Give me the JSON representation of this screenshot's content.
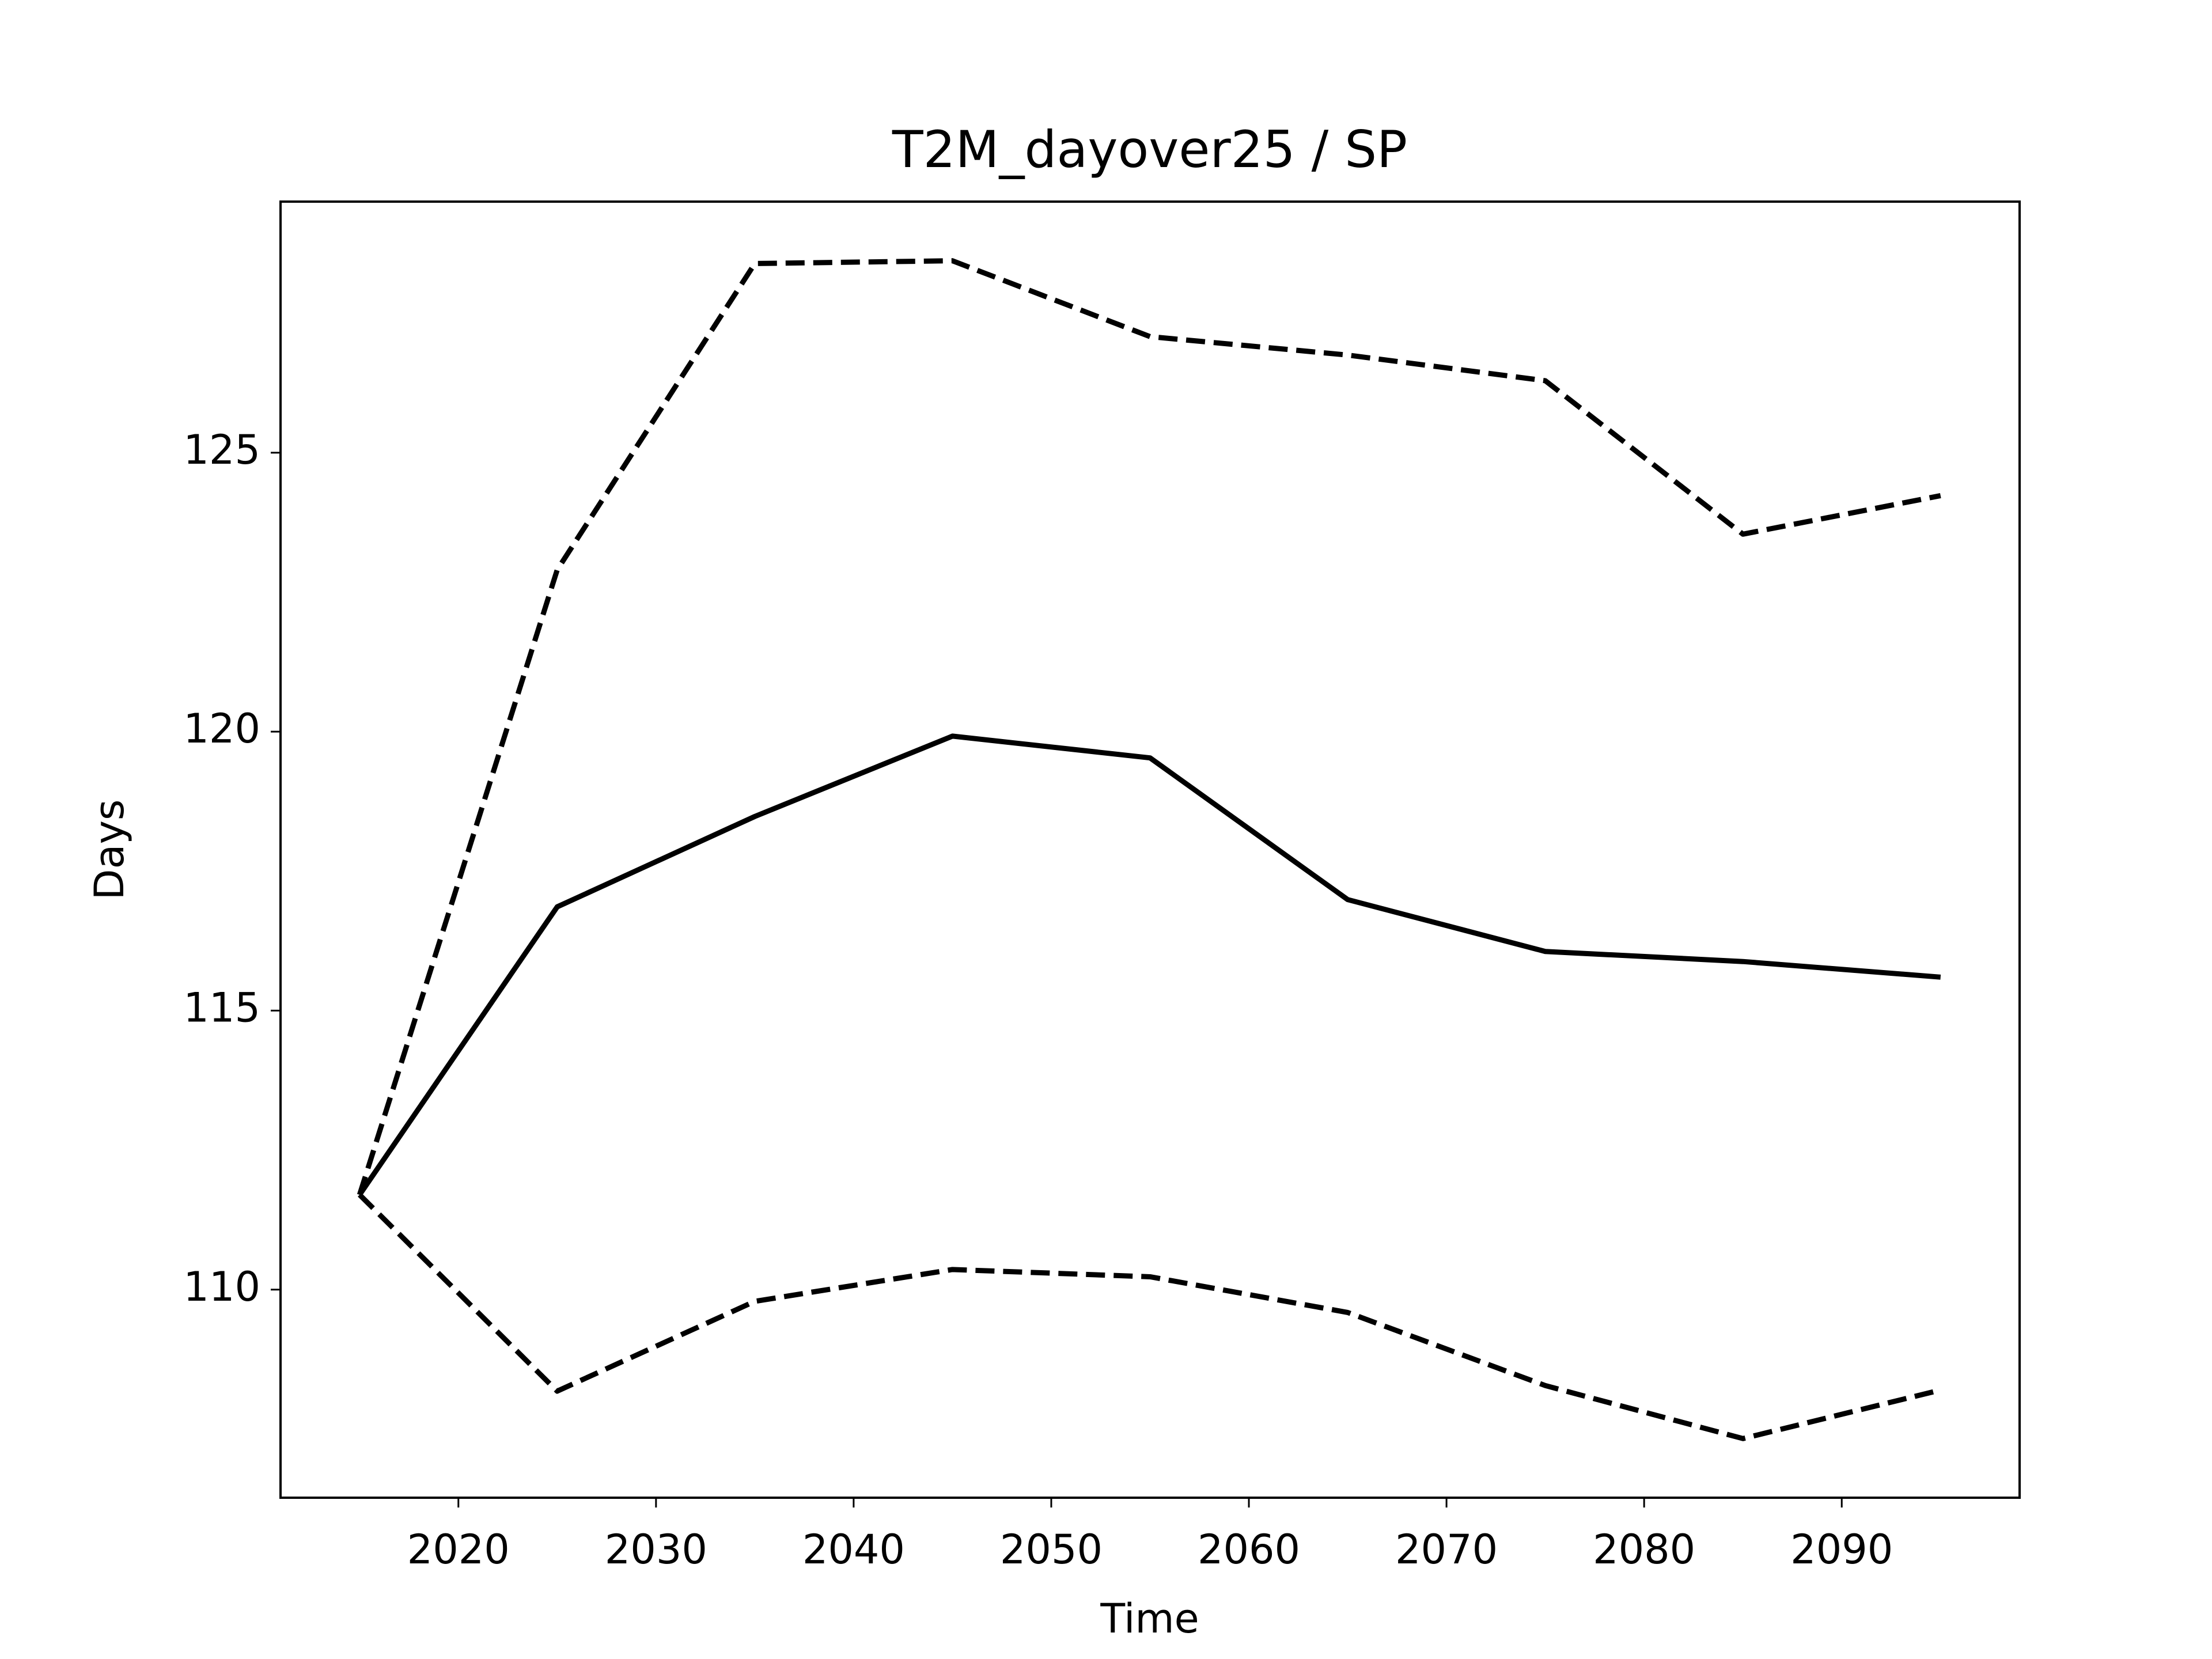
{
  "chart_data": {
    "type": "line",
    "title": "T2M_dayover25 / SP",
    "x_label": "Time",
    "y_label": "Days",
    "x": [
      2015,
      2025,
      2035,
      2045,
      2055,
      2065,
      2075,
      2085,
      2095
    ],
    "series": [
      {
        "color": "#000000",
        "linestyle": "solid",
        "values": [
          111.7,
          116.86,
          118.48,
          119.92,
          119.53,
          116.99,
          116.06,
          115.88,
          115.6
        ]
      },
      {
        "color": "#000000",
        "linestyle": "dashed",
        "values": [
          111.7,
          122.9,
          128.39,
          128.44,
          127.08,
          126.75,
          126.29,
          123.54,
          124.23
        ]
      },
      {
        "color": "#000000",
        "linestyle": "dashed",
        "values": [
          111.7,
          108.18,
          109.79,
          110.36,
          110.23,
          109.59,
          108.28,
          107.33,
          108.2
        ]
      }
    ],
    "xlim": [
      2011,
      2099
    ],
    "xticks": [
      2020,
      2030,
      2040,
      2050,
      2060,
      2070,
      2080,
      2090
    ],
    "ylim": [
      106.27,
      129.5
    ],
    "yticks": [
      110,
      115,
      120,
      125
    ],
    "grid": false
  }
}
